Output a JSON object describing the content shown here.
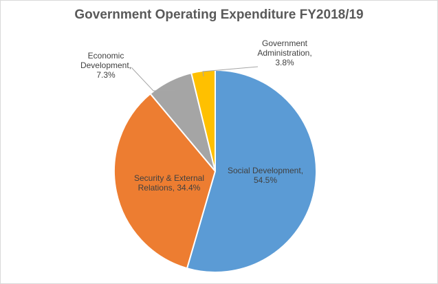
{
  "chart_data": {
    "type": "pie",
    "title": "Government Operating Expenditure FY2018/19",
    "slices": [
      {
        "name": "Social Development",
        "value": 54.5,
        "label": [
          "Social Development,",
          "54.5%"
        ],
        "color": "#5b9bd5"
      },
      {
        "name": "Security & External Relations",
        "value": 34.4,
        "label": [
          "Security & External",
          "Relations, 34.4%"
        ],
        "color": "#ed7d31"
      },
      {
        "name": "Economic Development",
        "value": 7.3,
        "label": [
          "Economic",
          "Development,",
          "7.3%"
        ],
        "color": "#a5a5a5"
      },
      {
        "name": "Government Administration",
        "value": 3.8,
        "label": [
          "Government",
          "Administration,",
          "3.8%"
        ],
        "color": "#ffc000"
      }
    ],
    "start_angle_deg": 0,
    "direction": "clockwise"
  }
}
